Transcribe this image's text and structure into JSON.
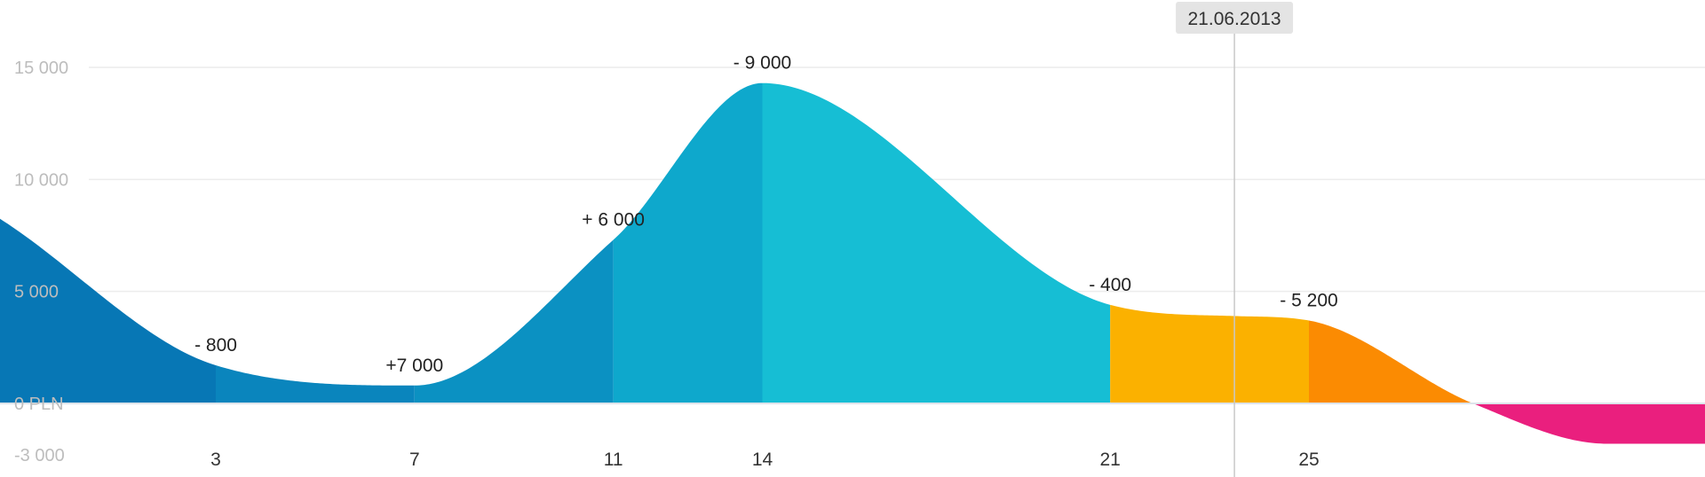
{
  "chart_data": {
    "type": "area",
    "currency_unit": "PLN",
    "x_range": [
      1,
      33
    ],
    "ylim": [
      -3000,
      15000
    ],
    "grid": true,
    "y_ticks": [
      {
        "value": 15000,
        "label": "15 000"
      },
      {
        "value": 10000,
        "label": "10 000"
      },
      {
        "value": 5000,
        "label": "5 000"
      },
      {
        "value": 0,
        "label": "0 PLN"
      },
      {
        "value": -3000,
        "label": "-3 000"
      }
    ],
    "x_ticks": [
      {
        "value": 3,
        "label": "3"
      },
      {
        "value": 7,
        "label": "7"
      },
      {
        "value": 11,
        "label": "11"
      },
      {
        "value": 14,
        "label": "14"
      },
      {
        "value": 21,
        "label": "21"
      },
      {
        "value": 25,
        "label": "25"
      }
    ],
    "curve": [
      {
        "x": -3.2,
        "y": 9700
      },
      {
        "x": 3,
        "y": 1700
      },
      {
        "x": 7,
        "y": 800
      },
      {
        "x": 11,
        "y": 7300
      },
      {
        "x": 14,
        "y": 14300
      },
      {
        "x": 21,
        "y": 4400
      },
      {
        "x": 23.5,
        "y": 3900
      },
      {
        "x": 25,
        "y": 3700
      },
      {
        "x": 28.3,
        "y": 0
      },
      {
        "x": 31,
        "y": -1800
      },
      {
        "x": 33.2,
        "y": -1800
      }
    ],
    "segments": [
      {
        "x0": -3.2,
        "x1": 3,
        "color": "#0777b5"
      },
      {
        "x0": 3,
        "x1": 7,
        "color": "#0a85bd"
      },
      {
        "x0": 7,
        "x1": 11,
        "color": "#0b91c2"
      },
      {
        "x0": 11,
        "x1": 14,
        "color": "#0ea8cc"
      },
      {
        "x0": 14,
        "x1": 21,
        "color": "#16bed4"
      },
      {
        "x0": 21,
        "x1": 25,
        "color": "#fbb100"
      },
      {
        "x0": 25,
        "x1": 28.3,
        "color": "#fb8b02"
      },
      {
        "x0": 28.3,
        "x1": 33.2,
        "color": "#ea1f7e"
      }
    ],
    "annotations": [
      {
        "x": 3,
        "y": 1700,
        "label": "-  800"
      },
      {
        "x": 7,
        "y": 800,
        "label": "+7 000"
      },
      {
        "x": 11,
        "y": 7300,
        "label": "+ 6 000"
      },
      {
        "x": 14,
        "y": 14300,
        "label": "- 9 000"
      },
      {
        "x": 21,
        "y": 4400,
        "label": "- 400"
      },
      {
        "x": 25,
        "y": 3700,
        "label": "- 5 200"
      }
    ],
    "current_date": {
      "x": 23.5,
      "label": "21.06.2013"
    }
  }
}
